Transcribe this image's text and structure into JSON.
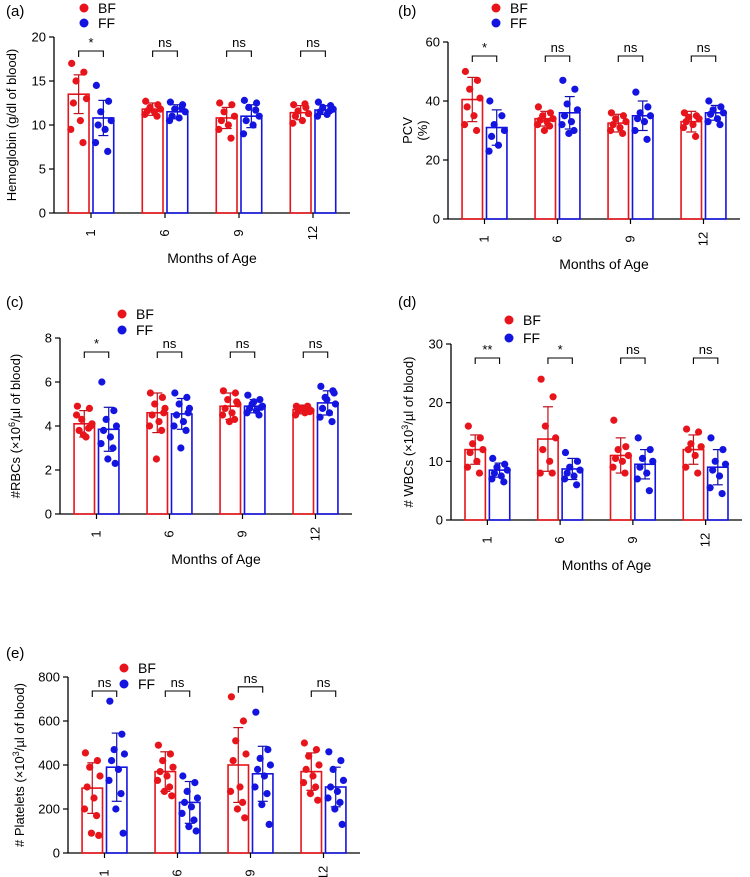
{
  "colors": {
    "bf": "#e8141b",
    "ff": "#1414e0",
    "bf_light": "#f0505a"
  },
  "chart_data": [
    {
      "type": "bar",
      "panel": "(a)",
      "title": "",
      "xlabel": "Months of Age",
      "ylabel": "Hemoglobin (g/dl of blood)",
      "categories": [
        "1",
        "6",
        "9",
        "12"
      ],
      "ylim": [
        0,
        20
      ],
      "yticks": [
        "0",
        "5",
        "10",
        "15",
        "20"
      ],
      "legend": [
        "BF",
        "FF"
      ],
      "series": [
        {
          "name": "BF",
          "values": [
            13.5,
            11.8,
            10.8,
            11.4
          ],
          "sd": [
            2.2,
            0.7,
            1.2,
            0.8
          ],
          "points": [
            [
              17.0,
              16.0,
              15.0,
              13.0,
              12.5,
              10.5,
              9.5,
              8.0
            ],
            [
              12.7,
              12.3,
              12.0,
              11.8,
              11.6,
              11.5,
              11.2,
              11.0
            ],
            [
              12.5,
              12.3,
              11.5,
              11.0,
              10.5,
              10.0,
              9.5,
              8.5
            ],
            [
              12.3,
              12.0,
              11.6,
              11.3,
              11.0,
              10.5,
              10.2,
              12.4
            ]
          ]
        },
        {
          "name": "FF",
          "values": [
            10.8,
            11.5,
            11.0,
            11.7
          ],
          "sd": [
            2.0,
            0.8,
            1.3,
            0.5
          ],
          "points": [
            [
              14.5,
              12.7,
              11.5,
              10.5,
              10.0,
              9.5,
              8.0,
              7.0
            ],
            [
              12.6,
              12.3,
              11.8,
              11.5,
              11.0,
              10.8,
              10.5,
              11.9
            ],
            [
              12.8,
              12.5,
              12.0,
              11.0,
              10.5,
              10.0,
              9.0,
              11.7
            ],
            [
              12.6,
              12.2,
              12.0,
              11.8,
              11.5,
              11.2,
              11.0,
              11.6
            ]
          ]
        }
      ],
      "significance": [
        "*",
        "ns",
        "ns",
        "ns"
      ]
    },
    {
      "type": "bar",
      "panel": "(b)",
      "title": "",
      "xlabel": "Months of Age",
      "ylabel": "PCV (%)",
      "ylabel_lines": [
        "PCV",
        "(%)"
      ],
      "categories": [
        "1",
        "6",
        "9",
        "12"
      ],
      "ylim": [
        0,
        60
      ],
      "yticks": [
        "0",
        "20",
        "40",
        "60"
      ],
      "legend": [
        "BF",
        "FF"
      ],
      "series": [
        {
          "name": "BF",
          "values": [
            40.5,
            34.0,
            32.5,
            33.0
          ],
          "sd": [
            7.5,
            2.5,
            3.0,
            3.5
          ],
          "points": [
            [
              50.0,
              47.0,
              44.0,
              41.0,
              38.0,
              35.0,
              32.0,
              30.0
            ],
            [
              38.0,
              36.0,
              35.0,
              34.0,
              33.5,
              33.0,
              32.0,
              31.5,
              30.0
            ],
            [
              36.0,
              35.0,
              34.0,
              33.0,
              32.0,
              31.0,
              30.0,
              29.0
            ],
            [
              36.0,
              35.0,
              34.5,
              34.0,
              33.0,
              32.0,
              31.0,
              28.0
            ]
          ]
        },
        {
          "name": "FF",
          "values": [
            31.0,
            36.0,
            35.0,
            36.0
          ],
          "sd": [
            6.0,
            5.5,
            5.0,
            2.5
          ],
          "points": [
            [
              40.0,
              35.0,
              32.0,
              30.0,
              28.0,
              25.0,
              23.0
            ],
            [
              47.0,
              44.0,
              39.0,
              37.0,
              35.0,
              33.0,
              32.0,
              30.0,
              29.0
            ],
            [
              43.0,
              38.0,
              36.0,
              35.0,
              34.0,
              33.0,
              30.0,
              27.0
            ],
            [
              40.0,
              38.0,
              37.0,
              36.0,
              35.5,
              34.0,
              33.0,
              32.0
            ]
          ]
        }
      ],
      "significance": [
        "*",
        "ns",
        "ns",
        "ns"
      ]
    },
    {
      "type": "bar",
      "panel": "(c)",
      "title": "",
      "xlabel": "Months of Age",
      "ylabel": "#RBCs (×10⁶/µl of blood)",
      "ylabel_parts": [
        "#RBCs (×10",
        "6",
        "/µl of blood)"
      ],
      "categories": [
        "1",
        "6",
        "9",
        "12"
      ],
      "ylim": [
        0,
        8
      ],
      "yticks": [
        "0",
        "2",
        "4",
        "6",
        "8"
      ],
      "legend": [
        "BF",
        "FF"
      ],
      "series": [
        {
          "name": "BF",
          "values": [
            4.1,
            4.6,
            4.9,
            4.75
          ],
          "sd": [
            0.6,
            0.9,
            0.6,
            0.2
          ],
          "points": [
            [
              4.9,
              4.8,
              4.3,
              4.1,
              3.8,
              3.5,
              4.5,
              3.9,
              3.6,
              4.0
            ],
            [
              5.5,
              5.3,
              5.0,
              4.8,
              4.5,
              4.2,
              4.0,
              3.8,
              2.5,
              4.6
            ],
            [
              5.6,
              5.5,
              5.2,
              5.0,
              4.8,
              4.6,
              4.5,
              4.3,
              4.2,
              5.1
            ],
            [
              4.9,
              4.8,
              4.8,
              4.7,
              4.7,
              4.6,
              4.5,
              4.9,
              4.75,
              4.65
            ]
          ]
        },
        {
          "name": "FF",
          "values": [
            3.85,
            4.55,
            4.9,
            5.05
          ],
          "sd": [
            1.0,
            0.7,
            0.3,
            0.55
          ],
          "points": [
            [
              6.0,
              4.7,
              4.3,
              4.0,
              3.8,
              3.5,
              3.2,
              3.0,
              2.5,
              2.3
            ],
            [
              5.5,
              5.3,
              5.0,
              4.8,
              4.5,
              4.2,
              4.0,
              3.8,
              3.0,
              4.6
            ],
            [
              5.4,
              5.2,
              5.0,
              4.9,
              4.8,
              4.7,
              4.6,
              4.5,
              5.1,
              4.85
            ],
            [
              5.8,
              5.6,
              5.3,
              5.0,
              4.8,
              4.6,
              4.4,
              4.2,
              5.2,
              5.5
            ]
          ]
        }
      ],
      "significance": [
        "*",
        "ns",
        "ns",
        "ns"
      ]
    },
    {
      "type": "bar",
      "panel": "(d)",
      "title": "",
      "xlabel": "Months of Age",
      "ylabel": "# WBCs (×10³/µl of blood)",
      "ylabel_parts": [
        "# WBCs (×10",
        "3",
        "/µl of blood)"
      ],
      "categories": [
        "1",
        "6",
        "9",
        "12"
      ],
      "ylim": [
        0,
        30
      ],
      "yticks": [
        "0",
        "10",
        "20",
        "30"
      ],
      "legend": [
        "BF",
        "FF"
      ],
      "series": [
        {
          "name": "BF",
          "values": [
            12.0,
            13.8,
            11.0,
            12.0
          ],
          "sd": [
            2.5,
            5.5,
            3.0,
            2.5
          ],
          "points": [
            [
              16.0,
              14.0,
              13.0,
              12.0,
              11.5,
              10.0,
              9.0,
              8.0
            ],
            [
              24.0,
              21.0,
              16.0,
              14.0,
              12.0,
              10.0,
              8.0,
              8.0
            ],
            [
              17.0,
              12.5,
              12.0,
              11.0,
              10.5,
              10.0,
              9.0,
              8.0
            ],
            [
              15.5,
              15.0,
              13.0,
              12.5,
              12.0,
              11.0,
              9.0,
              8.0
            ]
          ]
        },
        {
          "name": "FF",
          "values": [
            8.5,
            8.7,
            9.5,
            9.0
          ],
          "sd": [
            1.2,
            1.8,
            2.5,
            3.0
          ],
          "points": [
            [
              10.5,
              9.5,
              9.0,
              8.5,
              8.0,
              7.5,
              7.0,
              6.5
            ],
            [
              11.5,
              10.0,
              9.0,
              8.5,
              8.0,
              7.5,
              7.0,
              6.0
            ],
            [
              14.0,
              12.0,
              10.5,
              10.0,
              9.0,
              8.0,
              7.0,
              5.0
            ],
            [
              14.0,
              12.0,
              10.0,
              9.5,
              8.5,
              7.5,
              5.5,
              4.5
            ]
          ]
        }
      ],
      "significance": [
        "**",
        "*",
        "ns",
        "ns"
      ]
    },
    {
      "type": "bar",
      "panel": "(e)",
      "title": "",
      "xlabel": "Months of Age",
      "ylabel": "# Platelets (×10³/µl of blood)",
      "ylabel_parts": [
        "# Platelets (×10",
        "3",
        "/µl of blood)"
      ],
      "categories": [
        "1",
        "6",
        "9",
        "12"
      ],
      "ylim": [
        0,
        800
      ],
      "yticks": [
        "0",
        "200",
        "400",
        "600",
        "800"
      ],
      "legend": [
        "BF",
        "FF"
      ],
      "series": [
        {
          "name": "BF",
          "values": [
            295,
            370,
            400,
            370
          ],
          "sd": [
            115,
            90,
            170,
            85
          ],
          "points": [
            [
              455,
              420,
              390,
              350,
              300,
              250,
              200,
              170,
              90,
              80
            ],
            [
              490,
              450,
              420,
              390,
              370,
              350,
              330,
              300,
              280,
              260
            ],
            [
              710,
              600,
              510,
              450,
              420,
              300,
              280,
              230,
              200,
              160
            ],
            [
              500,
              470,
              440,
              400,
              380,
              350,
              320,
              300,
              270,
              240
            ]
          ]
        },
        {
          "name": "FF",
          "values": [
            390,
            230,
            360,
            300
          ],
          "sd": [
            155,
            95,
            125,
            90
          ],
          "points": [
            [
              690,
              540,
              470,
              450,
              420,
              380,
              330,
              270,
              200,
              90
            ],
            [
              350,
              320,
              280,
              250,
              230,
              210,
              180,
              150,
              120,
              100
            ],
            [
              640,
              470,
              430,
              400,
              380,
              350,
              300,
              270,
              220,
              130
            ],
            [
              460,
              420,
              380,
              330,
              300,
              280,
              250,
              230,
              200,
              130
            ]
          ]
        }
      ],
      "significance": [
        "ns",
        "ns",
        "ns",
        "ns"
      ]
    }
  ]
}
